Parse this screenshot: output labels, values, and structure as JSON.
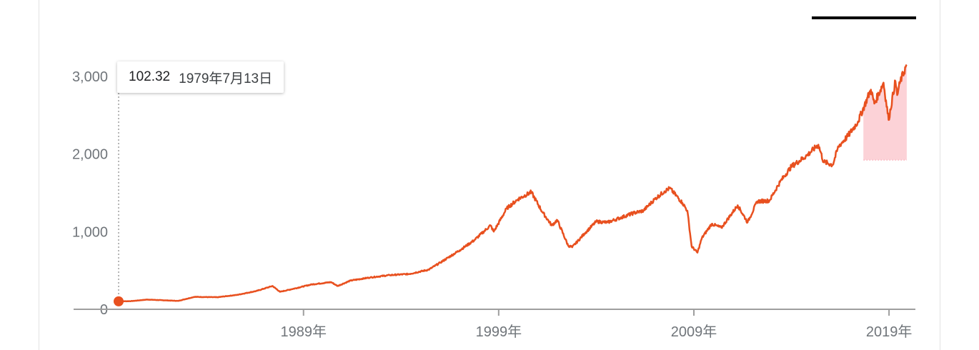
{
  "tooltip": {
    "value": "102.32",
    "date": "1979年7月13日"
  },
  "colors": {
    "line": "#e8501f",
    "area": "#fbc3ca",
    "axis": "#9e9e9e",
    "tick_label": "#70757a",
    "cursor": "#9e9e9e"
  },
  "chart_data": {
    "type": "line",
    "ylim": [
      0,
      3000
    ],
    "xlim": [
      "1979-07-13",
      "2019-11-30"
    ],
    "y_ticks": [
      0,
      1000,
      2000,
      3000
    ],
    "y_tick_labels": [
      "0",
      "1,000",
      "2,000",
      "3,000"
    ],
    "x_ticks": [
      "1989-01-01",
      "1999-01-01",
      "2009-01-01",
      "2019-01-01"
    ],
    "x_tick_labels": [
      "1989年",
      "1999年",
      "2009年",
      "2019年"
    ],
    "grid": false,
    "highlight_baseline": 1925,
    "highlight_start": "2017-09-01",
    "series": [
      {
        "x": [
          "1979-07-13",
          "1980-03-01",
          "1981-01-01",
          "1982-08-01",
          "1983-06-01",
          "1984-08-01",
          "1985-08-01",
          "1986-08-01",
          "1987-06-01",
          "1987-10-20",
          "1988-06-01",
          "1989-06-01",
          "1990-06-01",
          "1990-10-01",
          "1991-06-01",
          "1992-06-01",
          "1993-06-01",
          "1994-06-01",
          "1995-06-01",
          "1996-01-01",
          "1997-01-01",
          "1997-10-01",
          "1998-08-01",
          "1998-10-01",
          "1999-06-01",
          "2000-01-01",
          "2000-09-01",
          "2001-04-01",
          "2001-09-21",
          "2002-01-01",
          "2002-07-24",
          "2002-10-09",
          "2003-06-01",
          "2004-01-01",
          "2004-08-01",
          "2005-04-01",
          "2005-12-01",
          "2006-06-01",
          "2007-01-01",
          "2007-07-01",
          "2007-10-09",
          "2008-06-01",
          "2008-09-01",
          "2008-11-20",
          "2009-03-09",
          "2009-06-01",
          "2009-12-01",
          "2010-06-01",
          "2011-04-01",
          "2011-10-03",
          "2012-04-01",
          "2012-11-15",
          "2013-06-01",
          "2013-12-31",
          "2014-10-15",
          "2015-05-20",
          "2015-08-25",
          "2016-02-11",
          "2016-06-01",
          "2016-12-01",
          "2017-06-01",
          "2018-01-26",
          "2018-04-01",
          "2018-09-20",
          "2018-12-24",
          "2019-04-30",
          "2019-06-03",
          "2019-08-01",
          "2019-11-28"
        ],
        "y": [
          102.32,
          105,
          125,
          108,
          160,
          155,
          185,
          235,
          300,
          225,
          260,
          320,
          350,
          300,
          370,
          410,
          440,
          455,
          510,
          600,
          760,
          890,
          1080,
          1000,
          1300,
          1420,
          1510,
          1250,
          1080,
          1150,
          820,
          800,
          980,
          1130,
          1120,
          1180,
          1240,
          1270,
          1420,
          1520,
          1560,
          1370,
          1270,
          810,
          730,
          920,
          1100,
          1050,
          1340,
          1120,
          1390,
          1400,
          1640,
          1840,
          1980,
          2120,
          1900,
          1860,
          2100,
          2240,
          2420,
          2830,
          2650,
          2920,
          2440,
          2940,
          2760,
          2940,
          3150
        ]
      }
    ]
  }
}
